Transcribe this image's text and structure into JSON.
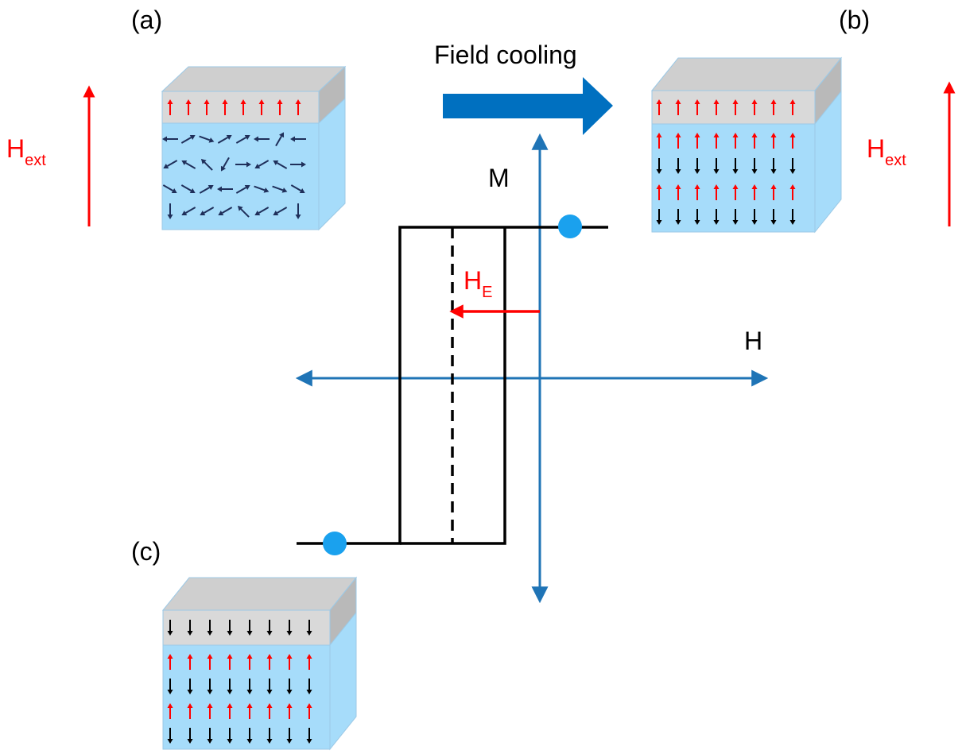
{
  "panels": {
    "a": {
      "label": "(a)"
    },
    "b": {
      "label": "(b)"
    },
    "c": {
      "label": "(c)"
    }
  },
  "process": {
    "label": "Field cooling"
  },
  "axes": {
    "x_label": "H",
    "y_label": "M"
  },
  "field": {
    "symbol": "H",
    "subscript": "ext"
  },
  "exchange_bias": {
    "symbol": "H",
    "subscript": "E"
  },
  "colors": {
    "axis": "#1f74b6",
    "arrow_block": "#0070c0",
    "field_arrow": "#ff0000",
    "spin_ferromagnet_red": "#ff0000",
    "spin_antiferromagnet_dark": "#1f2f5a",
    "spin_black": "#000000",
    "marker": "#1aa1ee",
    "layer_top": "#d9d9d9",
    "layer_bottom": "#a6dcfa"
  }
}
